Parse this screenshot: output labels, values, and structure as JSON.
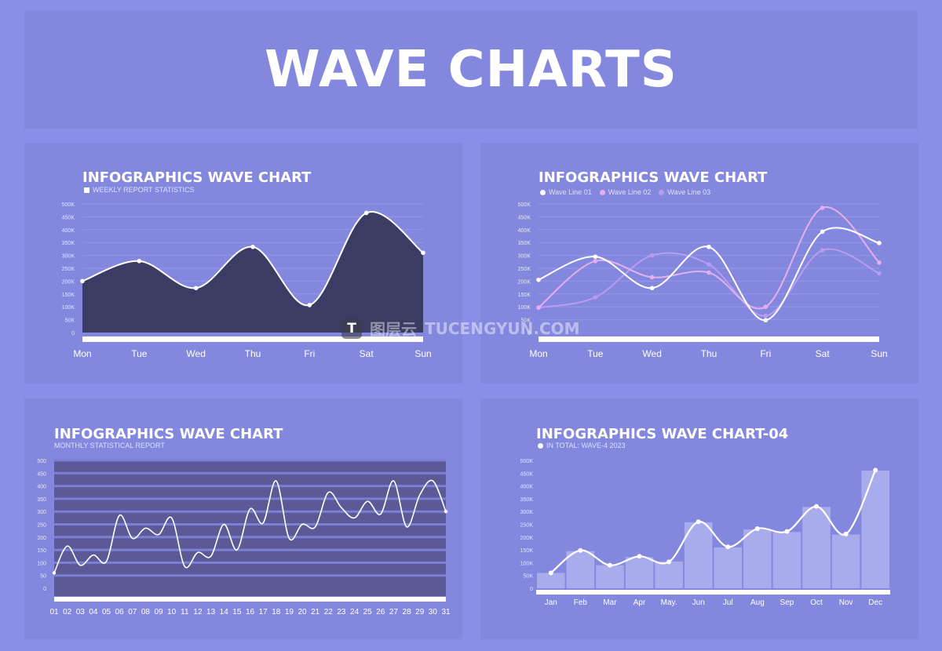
{
  "header": {
    "title": "WAVE CHARTS"
  },
  "watermark": {
    "logo": "T",
    "cn": "图层云",
    "en": "TUCENGYUN.COM"
  },
  "chart_data": [
    {
      "type": "area",
      "title": "INFOGRAPHICS WAVE CHART",
      "subtitle": "WEEKLY REPORT STATISTICS",
      "categories": [
        "Mon",
        "Tue",
        "Wed",
        "Thu",
        "Fri",
        "Sat",
        "Sun"
      ],
      "yticks": [
        "0",
        "50K",
        "100K",
        "150K",
        "200K",
        "250K",
        "300K",
        "350K",
        "400K",
        "450K",
        "500K"
      ],
      "ylim": [
        0,
        500
      ],
      "values": [
        200,
        278,
        173,
        333,
        107,
        465,
        310
      ],
      "fill_color": "#3b3c63",
      "line_color": "#ffffff"
    },
    {
      "type": "line",
      "title": "INFOGRAPHICS WAVE CHART",
      "categories": [
        "Mon",
        "Tue",
        "Wed",
        "Thu",
        "Fri",
        "Sat",
        "Sun"
      ],
      "yticks": [
        "0",
        "50K",
        "100K",
        "150K",
        "200K",
        "250K",
        "300K",
        "350K",
        "400K",
        "450K",
        "500K"
      ],
      "ylim": [
        0,
        500
      ],
      "series": [
        {
          "name": "Wave Line 01",
          "color": "#ffffff",
          "values": [
            205,
            295,
            173,
            333,
            48,
            392,
            348
          ]
        },
        {
          "name": "Wave Line 02",
          "color": "#e6aef0",
          "values": [
            97,
            278,
            215,
            233,
            100,
            485,
            272
          ]
        },
        {
          "name": "Wave Line 03",
          "color": "#b79cf2",
          "values": [
            97,
            137,
            300,
            265,
            65,
            320,
            230
          ]
        }
      ]
    },
    {
      "type": "line",
      "title": "INFOGRAPHICS WAVE CHART",
      "subtitle": "MONTHLY STATISTICAL REPORT",
      "categories": [
        "01",
        "02",
        "03",
        "04",
        "05",
        "06",
        "07",
        "08",
        "09",
        "10",
        "11",
        "12",
        "13",
        "14",
        "15",
        "16",
        "17",
        "18",
        "19",
        "20",
        "21",
        "22",
        "23",
        "24",
        "25",
        "26",
        "27",
        "28",
        "29",
        "30",
        "31"
      ],
      "yticks": [
        "0",
        "50",
        "100",
        "150",
        "200",
        "250",
        "300",
        "350",
        "400",
        "450",
        "500"
      ],
      "ylim": [
        0,
        500
      ],
      "values": [
        60,
        165,
        90,
        130,
        105,
        285,
        195,
        235,
        210,
        275,
        85,
        140,
        125,
        250,
        150,
        310,
        255,
        420,
        195,
        250,
        240,
        375,
        315,
        275,
        340,
        290,
        420,
        240,
        365,
        420,
        300
      ],
      "band_colors": [
        "#5b5a96",
        "#7c7fd6"
      ],
      "line_color": "#ffffff"
    },
    {
      "type": "bar",
      "title": "INFOGRAPHICS WAVE CHART-04",
      "subtitle": "IN TOTAL: WAVE-4 2023",
      "categories": [
        "Jan",
        "Feb",
        "Mar",
        "Apr",
        "May.",
        "Jun",
        "Jul",
        "Aug",
        "Sep",
        "Oct",
        "Nov",
        "Dec"
      ],
      "yticks": [
        "0",
        "50K",
        "100K",
        "150K",
        "200K",
        "250K",
        "300K",
        "350K",
        "400K",
        "450K",
        "500K"
      ],
      "ylim": [
        0,
        500
      ],
      "values": [
        60,
        145,
        90,
        122,
        105,
        258,
        160,
        230,
        220,
        318,
        210,
        460
      ],
      "line_values": [
        60,
        148,
        90,
        125,
        103,
        260,
        162,
        233,
        222,
        320,
        212,
        462
      ],
      "bar_color": "#a9acec",
      "line_color": "#ffffff"
    }
  ]
}
